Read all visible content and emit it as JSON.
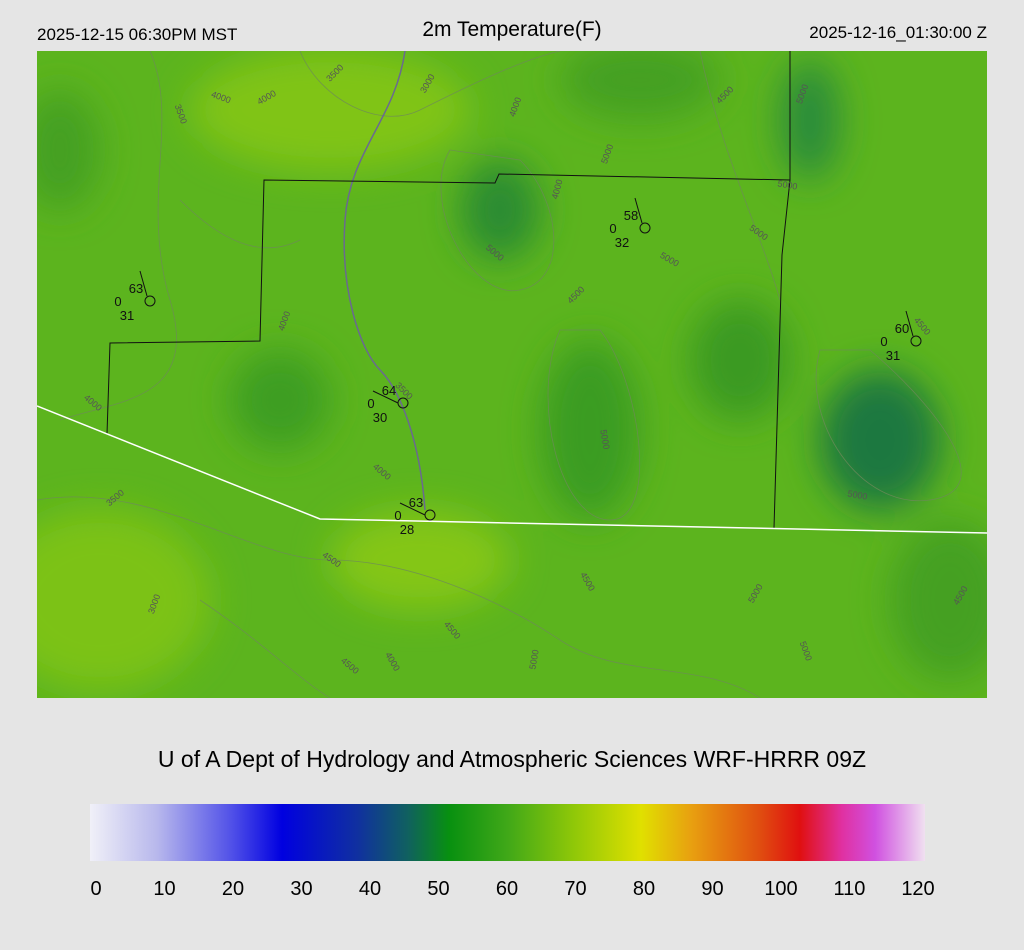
{
  "header": {
    "left": "2025-12-15 06:30PM MST",
    "title": "2m Temperature(F)",
    "right": "2025-12-16_01:30:00 Z"
  },
  "stations": [
    {
      "temp": 63,
      "wind": 0,
      "dewpoint": 31
    },
    {
      "temp": 58,
      "wind": 0,
      "dewpoint": 32
    },
    {
      "temp": 60,
      "wind": 0,
      "dewpoint": 31
    },
    {
      "temp": 64,
      "wind": 0,
      "dewpoint": 30
    },
    {
      "temp": 63,
      "wind": 0,
      "dewpoint": 28
    }
  ],
  "contour_labels": [
    3500,
    4000,
    4000,
    3500,
    3000,
    4000,
    4500,
    5000,
    5000,
    4000,
    5000,
    5000,
    5000,
    5000,
    4500,
    4000,
    4500,
    4000,
    3500,
    4000,
    3500,
    5000,
    5000,
    4500,
    3000,
    4500,
    4500,
    4500,
    4000,
    5000,
    5000,
    5000,
    4500
  ],
  "footer": "U of A Dept of Hydrology and Atmospheric Sciences WRF-HRRR 09Z",
  "colorbar": {
    "ticks": [
      0,
      10,
      20,
      30,
      40,
      50,
      60,
      70,
      80,
      90,
      100,
      110,
      120
    ]
  }
}
